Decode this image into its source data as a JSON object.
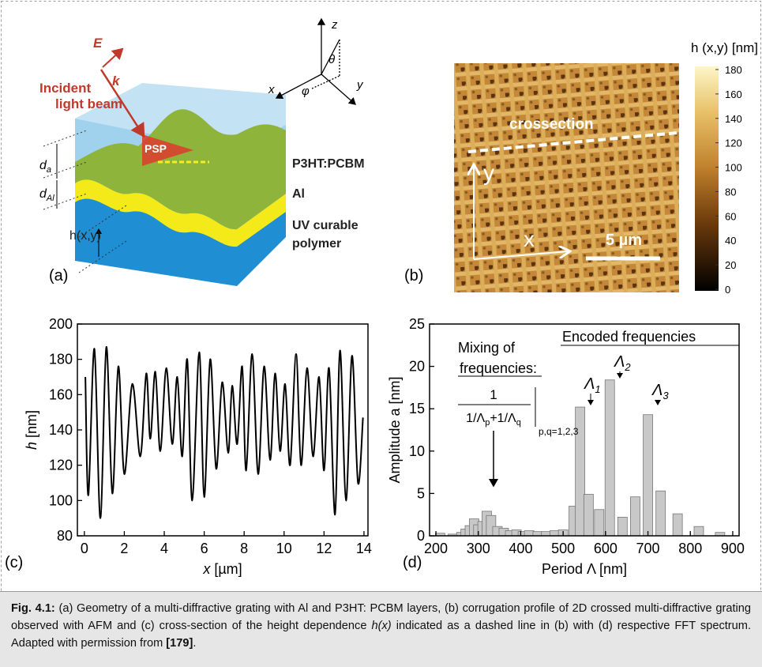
{
  "panel_a": {
    "label": "(a)",
    "beam": [
      "Incident",
      "light beam"
    ],
    "e_field": "E",
    "k_vector": "k",
    "psp": "PSP",
    "layer_top": "P3HT:PCBM",
    "layer_mid": "Al",
    "layer_bottom": [
      "UV curable",
      "polymer"
    ],
    "height": "h(x,y)",
    "d_a": {
      "base": "d",
      "sub": "a"
    },
    "d_al": {
      "base": "d",
      "sub": "Al"
    },
    "axes": {
      "x": "x",
      "y": "y",
      "z": "z",
      "theta": "θ",
      "phi": "φ"
    }
  },
  "panel_b": {
    "label": "(b)",
    "colorbar_title": "h (x,y) [nm]",
    "colorbar_lim": [
      0,
      180
    ],
    "colorbar_ticks": [
      0,
      20,
      40,
      60,
      80,
      100,
      120,
      140,
      160,
      180
    ],
    "crossection": "crossection",
    "axis_y": "y",
    "axis_x": "x",
    "scalebar": "5 µm"
  },
  "chart_data": [
    {
      "type": "line",
      "panel_label": "(c)",
      "xlabel": {
        "var": "x",
        "unit": " [µm]"
      },
      "ylabel": {
        "var": "h",
        "unit": " [nm]"
      },
      "color": "#000000",
      "x": [
        0.05,
        0.2,
        0.5,
        0.8,
        1.1,
        1.4,
        1.7,
        2.0,
        2.4,
        2.8,
        3.1,
        3.3,
        3.55,
        3.8,
        4.1,
        4.4,
        4.65,
        4.9,
        5.15,
        5.4,
        5.75,
        6.0,
        6.3,
        6.6,
        6.9,
        7.2,
        7.4,
        7.65,
        7.9,
        8.1,
        8.4,
        8.7,
        9.0,
        9.3,
        9.55,
        9.8,
        10.05,
        10.3,
        10.6,
        10.85,
        11.15,
        11.45,
        11.75,
        12.0,
        12.25,
        12.55,
        12.8,
        13.1,
        13.4,
        13.7,
        13.95
      ],
      "values": [
        170,
        103,
        186,
        90,
        187,
        104,
        176,
        115,
        166,
        125,
        172,
        135,
        173,
        128,
        175,
        132,
        170,
        125,
        180,
        100,
        184,
        102,
        180,
        118,
        167,
        127,
        165,
        132,
        176,
        117,
        183,
        115,
        176,
        123,
        172,
        128,
        166,
        120,
        183,
        120,
        175,
        125,
        170,
        117,
        175,
        92,
        185,
        100,
        182,
        110,
        147
      ],
      "xlim": [
        -0.35,
        14.2
      ],
      "xticks": [
        0,
        2,
        4,
        6,
        8,
        10,
        12,
        14
      ],
      "ylim": [
        80,
        200
      ],
      "yticks": [
        80,
        100,
        120,
        140,
        160,
        180,
        200
      ]
    },
    {
      "type": "bar",
      "panel_label": "(d)",
      "xlabel": "Period Λ [nm]",
      "ylabel": "Amplitude a [nm]",
      "color": "#c8c8c8",
      "x": [
        210,
        240,
        260,
        270,
        280,
        290,
        300,
        310,
        320,
        330,
        345,
        360,
        375,
        390,
        405,
        420,
        440,
        460,
        480,
        500,
        525,
        540,
        560,
        585,
        610,
        640,
        670,
        700,
        730,
        770,
        820,
        870
      ],
      "values": [
        0.3,
        0.2,
        0.4,
        0.8,
        1.2,
        2.0,
        1.3,
        1.7,
        2.9,
        2.4,
        1.1,
        0.9,
        0.6,
        0.7,
        0.5,
        0.6,
        0.5,
        0.5,
        0.6,
        0.7,
        3.5,
        15.2,
        4.9,
        3.1,
        18.4,
        2.2,
        4.6,
        14.3,
        5.3,
        2.6,
        1.1,
        0.4
      ],
      "xlim": [
        185,
        915
      ],
      "xticks": [
        200,
        300,
        400,
        500,
        600,
        700,
        800,
        900
      ],
      "ylim": [
        0,
        25
      ],
      "yticks": [
        0,
        5,
        10,
        15,
        20,
        25
      ],
      "annotations": {
        "mixing": [
          "Mixing of",
          "frequencies:"
        ],
        "encoded": "Encoded frequencies",
        "numerator": "1",
        "denominator": {
          "a": "1/Λ",
          "p": "p",
          "b": "+1/Λ",
          "q": "q"
        },
        "range": "p,q=1,2,3",
        "lambda_1": {
          "base": "Λ",
          "sub": "1"
        },
        "lambda_2": {
          "base": "Λ",
          "sub": "2"
        },
        "lambda_3": {
          "base": "Λ",
          "sub": "3"
        }
      }
    }
  ],
  "caption": {
    "label": "Fig. 4.1:",
    "text_1": " (a) Geometry of a multi-diffractive grating with Al and P3HT: PCBM layers, (b) corrugation profile of 2D crossed multi-diffractive grating observed with AFM and (c) cross-section of the height dependence ",
    "italic": "h(x)",
    "text_2": " indicated as a dashed line in (b) with (d) respective FFT spectrum. Adapted with permission from ",
    "ref": "[179]",
    "end": "."
  }
}
